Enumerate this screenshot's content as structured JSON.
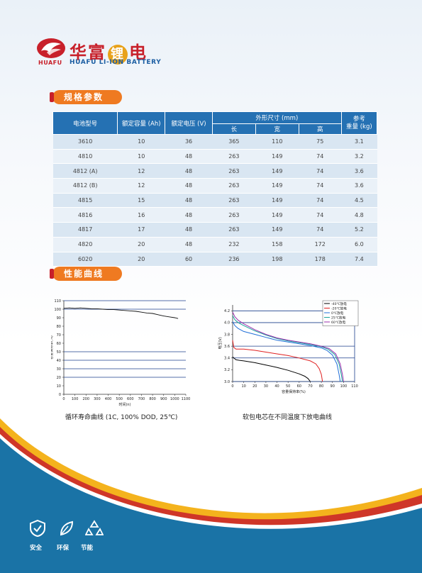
{
  "brand": {
    "logo_en": "HUAFU",
    "cn_name_1": "华富",
    "cn_name_2": "锂",
    "cn_name_3": "电",
    "en_name": "HUAFU LI-ION BATTERY"
  },
  "sections": {
    "spec_title": "规格参数",
    "curve_title": "性能曲线"
  },
  "table": {
    "headers": {
      "model": "电池型号",
      "capacity": "额定容量 (Ah)",
      "voltage": "额定电压 (V)",
      "dims": "外形尺寸 (mm)",
      "length": "长",
      "width": "宽",
      "height": "高",
      "weight_1": "参考",
      "weight_2": "重量 (kg)"
    },
    "rows": [
      {
        "model": "3610",
        "capacity": "10",
        "voltage": "36",
        "length": "365",
        "width": "110",
        "height": "75",
        "weight": "3.1"
      },
      {
        "model": "4810",
        "capacity": "10",
        "voltage": "48",
        "length": "263",
        "width": "149",
        "height": "74",
        "weight": "3.2"
      },
      {
        "model": "4812 (A)",
        "capacity": "12",
        "voltage": "48",
        "length": "263",
        "width": "149",
        "height": "74",
        "weight": "3.6"
      },
      {
        "model": "4812 (B)",
        "capacity": "12",
        "voltage": "48",
        "length": "263",
        "width": "149",
        "height": "74",
        "weight": "3.6"
      },
      {
        "model": "4815",
        "capacity": "15",
        "voltage": "48",
        "length": "263",
        "width": "149",
        "height": "74",
        "weight": "4.5"
      },
      {
        "model": "4816",
        "capacity": "16",
        "voltage": "48",
        "length": "263",
        "width": "149",
        "height": "74",
        "weight": "4.8"
      },
      {
        "model": "4817",
        "capacity": "17",
        "voltage": "48",
        "length": "263",
        "width": "149",
        "height": "74",
        "weight": "5.2"
      },
      {
        "model": "4820",
        "capacity": "20",
        "voltage": "48",
        "length": "232",
        "width": "158",
        "height": "172",
        "weight": "6.0"
      },
      {
        "model": "6020",
        "capacity": "20",
        "voltage": "60",
        "length": "236",
        "width": "198",
        "height": "178",
        "weight": "7.4"
      }
    ]
  },
  "chart_data": [
    {
      "type": "line",
      "caption": "循环寿命曲线 (1C, 100% DOD, 25℃)",
      "xlabel": "时间(n)",
      "ylabel": "容量保持率(%)",
      "xlim": [
        0,
        1100
      ],
      "ylim": [
        0,
        110
      ],
      "xticks": [
        "0",
        "100",
        "200",
        "300",
        "400",
        "500",
        "600",
        "700",
        "800",
        "900",
        "1000",
        "1100"
      ],
      "yticks": [
        "0",
        "10",
        "20",
        "30",
        "40",
        "50",
        "60",
        "70",
        "80",
        "90",
        "100",
        "110"
      ],
      "hlines": [
        20,
        30,
        40,
        50,
        100,
        110
      ],
      "series": [
        {
          "color": "#111111",
          "x": [
            0,
            50,
            100,
            150,
            200,
            250,
            300,
            350,
            400,
            450,
            500,
            550,
            600,
            650,
            700,
            750,
            800,
            850,
            900,
            950,
            1000,
            1030
          ],
          "y": [
            101,
            101.5,
            101,
            101.5,
            101,
            100.5,
            100.5,
            100,
            99.5,
            99.5,
            99,
            98.5,
            98,
            97.5,
            96.5,
            95.5,
            95,
            93.5,
            92,
            91,
            90,
            89
          ]
        }
      ]
    },
    {
      "type": "line",
      "caption": "软包电芯在不同温度下放电曲线",
      "xlabel": "容量保持率(%)",
      "ylabel": "电压(V)",
      "xlim": [
        0,
        110
      ],
      "ylim": [
        3.0,
        4.3
      ],
      "xticks": [
        "0",
        "10",
        "20",
        "30",
        "40",
        "50",
        "60",
        "70",
        "80",
        "90",
        "100",
        "110"
      ],
      "yticks": [
        "3.0",
        "3.2",
        "3.4",
        "3.6",
        "3.8",
        "4.0",
        "4.2"
      ],
      "hlines": [
        3.0,
        3.4,
        3.6,
        4.0,
        4.2
      ],
      "series": [
        {
          "name": "-40℃放电",
          "color": "#000000",
          "x": [
            0,
            1,
            3,
            6,
            10,
            20,
            30,
            40,
            50,
            60,
            65,
            68,
            70
          ],
          "y": [
            3.42,
            3.4,
            3.37,
            3.36,
            3.35,
            3.32,
            3.28,
            3.24,
            3.19,
            3.13,
            3.09,
            3.05,
            3.0
          ]
        },
        {
          "name": "-20℃放电",
          "color": "#e02020",
          "x": [
            0,
            1,
            3,
            6,
            10,
            20,
            30,
            40,
            50,
            60,
            70,
            75,
            78,
            80,
            81
          ],
          "y": [
            3.7,
            3.58,
            3.55,
            3.55,
            3.55,
            3.53,
            3.5,
            3.47,
            3.44,
            3.4,
            3.35,
            3.3,
            3.22,
            3.12,
            3.0
          ]
        },
        {
          "name": "0℃放电",
          "color": "#1f6fd8",
          "x": [
            0,
            2,
            5,
            10,
            20,
            30,
            40,
            50,
            60,
            70,
            80,
            85,
            90,
            94,
            96,
            97
          ],
          "y": [
            4.02,
            3.95,
            3.9,
            3.85,
            3.8,
            3.75,
            3.7,
            3.67,
            3.64,
            3.61,
            3.57,
            3.53,
            3.45,
            3.3,
            3.12,
            3.0
          ]
        },
        {
          "name": "25℃放电",
          "color": "#1aa39c",
          "x": [
            0,
            2,
            5,
            10,
            20,
            30,
            40,
            50,
            60,
            70,
            80,
            86,
            92,
            96,
            98,
            99
          ],
          "y": [
            4.12,
            4.05,
            4.0,
            3.95,
            3.86,
            3.79,
            3.73,
            3.69,
            3.66,
            3.63,
            3.59,
            3.55,
            3.46,
            3.3,
            3.12,
            3.0
          ]
        },
        {
          "name": "60℃放电",
          "color": "#9b2fae",
          "x": [
            0,
            2,
            5,
            10,
            20,
            30,
            40,
            50,
            60,
            70,
            80,
            87,
            93,
            97,
            99,
            100
          ],
          "y": [
            4.18,
            4.1,
            4.04,
            3.98,
            3.88,
            3.8,
            3.74,
            3.7,
            3.67,
            3.64,
            3.6,
            3.56,
            3.47,
            3.3,
            3.12,
            3.0
          ]
        }
      ]
    }
  ],
  "footer": {
    "items": [
      {
        "label": "安全",
        "icon": "shield-check-icon"
      },
      {
        "label": "环保",
        "icon": "leaf-icon"
      },
      {
        "label": "节能",
        "icon": "recycle-icon"
      }
    ]
  }
}
